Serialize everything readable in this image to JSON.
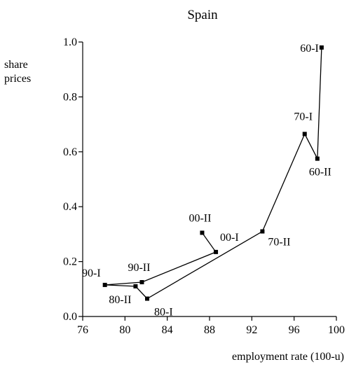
{
  "chart_data": {
    "type": "line",
    "title": "Spain",
    "xlabel": "employment rate (100-u)",
    "ylabel": "share prices",
    "xlim": [
      76,
      100
    ],
    "ylim": [
      0.0,
      1.0
    ],
    "x_ticks": [
      "76",
      "80",
      "84",
      "88",
      "92",
      "96",
      "100"
    ],
    "y_ticks": [
      "0.0",
      "0.2",
      "0.4",
      "0.6",
      "0.8",
      "1.0"
    ],
    "grid": false,
    "series": [
      {
        "points": [
          {
            "x": 98.6,
            "y": 0.98,
            "label": "60-I"
          },
          {
            "x": 98.2,
            "y": 0.575,
            "label": "60-II"
          },
          {
            "x": 97.0,
            "y": 0.665,
            "label": "70-I"
          },
          {
            "x": 93.0,
            "y": 0.31,
            "label": "70-II"
          },
          {
            "x": 82.1,
            "y": 0.065,
            "label": "80-I"
          },
          {
            "x": 81.0,
            "y": 0.11,
            "label": "80-II"
          },
          {
            "x": 78.1,
            "y": 0.115,
            "label": "90-I"
          },
          {
            "x": 81.6,
            "y": 0.125,
            "label": "90-II"
          },
          {
            "x": 88.6,
            "y": 0.235,
            "label": "00-I"
          },
          {
            "x": 87.3,
            "y": 0.305,
            "label": "00-II"
          }
        ]
      }
    ]
  }
}
